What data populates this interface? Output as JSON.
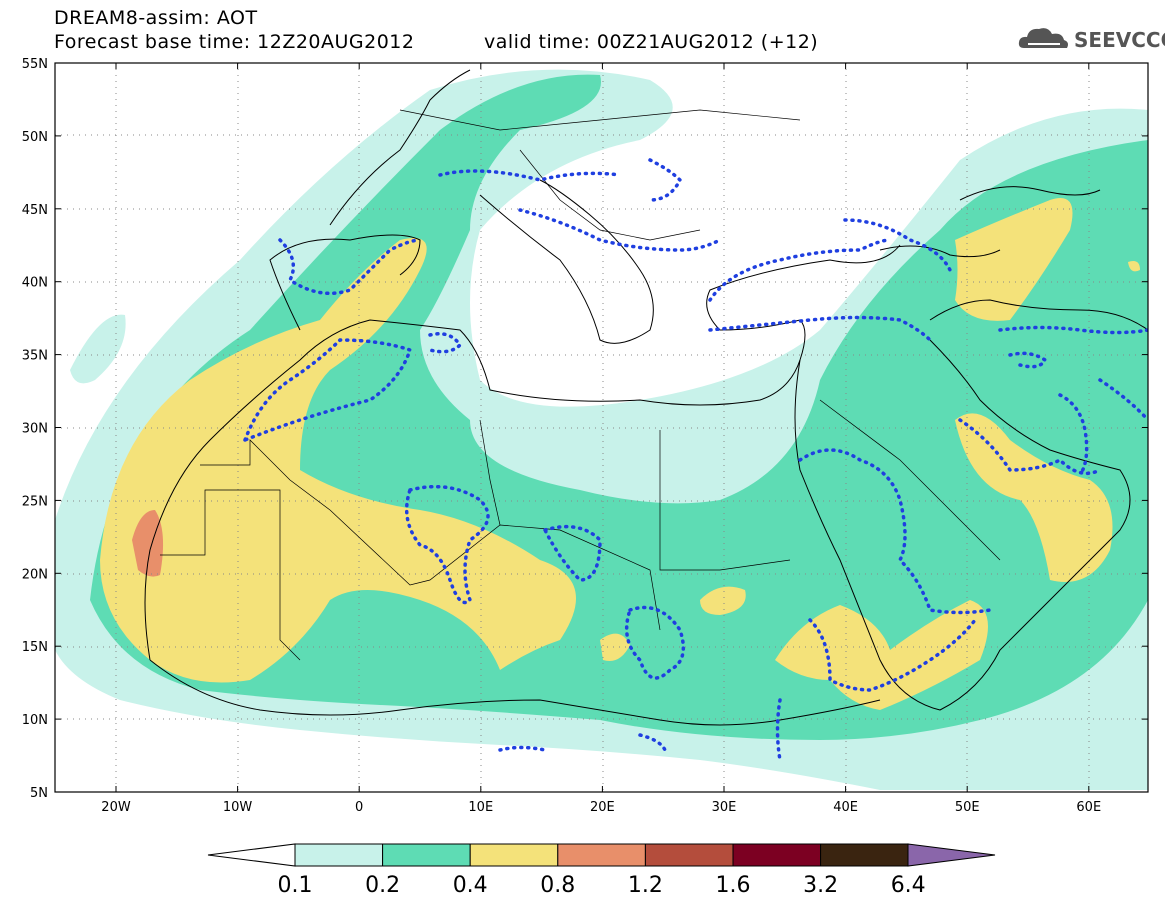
{
  "header": {
    "title": "DREAM8-assim: AOT",
    "base_time": "Forecast base time: 12Z20AUG2012",
    "valid_time": "valid time: 00Z21AUG2012 (+12)"
  },
  "logo": {
    "text": "SEEVCCC",
    "icon": "cloud-icon"
  },
  "axes": {
    "lat_labels": [
      "55N",
      "50N",
      "45N",
      "40N",
      "35N",
      "30N",
      "25N",
      "20N",
      "15N",
      "10N",
      "5N"
    ],
    "lon_labels": [
      "20W",
      "10W",
      "0",
      "10E",
      "20E",
      "30E",
      "40E",
      "50E",
      "60E"
    ]
  },
  "colorbar": {
    "labels": [
      "0.1",
      "0.2",
      "0.4",
      "0.8",
      "1.2",
      "1.6",
      "3.2",
      "6.4"
    ],
    "colors": [
      "#ffffff",
      "#c8f2ea",
      "#5edcb4",
      "#f4e27a",
      "#e88f6a",
      "#b44d3c",
      "#7c0022",
      "#3a2410",
      "#8a66aa"
    ]
  },
  "colors": {
    "lvl1": "#c8f2ea",
    "lvl2": "#5edcb4",
    "lvl3": "#f4e27a",
    "lvl4": "#e88f6a",
    "contour": "#1f3fe0",
    "coast": "#000000"
  }
}
